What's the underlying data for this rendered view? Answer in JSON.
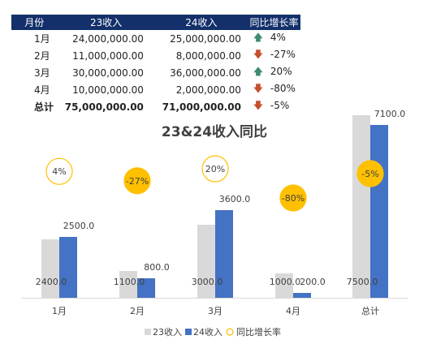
{
  "table": {
    "headers": [
      "月份",
      "23收入",
      "24收入",
      "同比增长率"
    ],
    "rows": [
      {
        "month": "1月",
        "v23": "24,000,000.00",
        "v24": "25,000,000.00",
        "trend": "up",
        "yoy": "4%"
      },
      {
        "month": "2月",
        "v23": "11,000,000.00",
        "v24": "8,000,000.00",
        "trend": "down",
        "yoy": "-27%"
      },
      {
        "month": "3月",
        "v23": "30,000,000.00",
        "v24": "36,000,000.00",
        "trend": "up",
        "yoy": "20%"
      },
      {
        "month": "4月",
        "v23": "10,000,000.00",
        "v24": "2,000,000.00",
        "trend": "down",
        "yoy": "-80%"
      },
      {
        "month": "总计",
        "v23": "75,000,000.00",
        "v24": "71,000,000.00",
        "trend": "down",
        "yoy": "-5%"
      }
    ],
    "icons": {
      "up": "up-arrow-icon",
      "down": "down-arrow-icon"
    },
    "colors": {
      "header_bg": "#13306b",
      "up": "#3f8a74",
      "down": "#c4502c"
    }
  },
  "chart_data": {
    "type": "bar",
    "title": "23&24收入同比",
    "categories": [
      "1月",
      "2月",
      "3月",
      "4月",
      "总计"
    ],
    "series": [
      {
        "name": "23收入",
        "values": [
          2400.0,
          1100.0,
          3000.0,
          1000.0,
          7500.0
        ],
        "labels": [
          "2400.0",
          "1100.0",
          "3000.0",
          "1000.0",
          "7500.0"
        ],
        "color": "#d9d9d9"
      },
      {
        "name": "24收入",
        "values": [
          2500.0,
          800.0,
          3600.0,
          200.0,
          7100.0
        ],
        "labels": [
          "2500.0",
          "800.0",
          "3600.0",
          "200.0",
          "7100.0"
        ],
        "color": "#4472c4"
      }
    ],
    "yoy": {
      "name": "同比增长率",
      "values": [
        4,
        -27,
        20,
        -80,
        -5
      ],
      "labels": [
        "4%",
        "-27%",
        "20%",
        "-80%",
        "-5%"
      ],
      "positive_style": "outline",
      "negative_style": "filled",
      "color": "#ffc000"
    },
    "legend_position": "bottom",
    "grid": false
  }
}
